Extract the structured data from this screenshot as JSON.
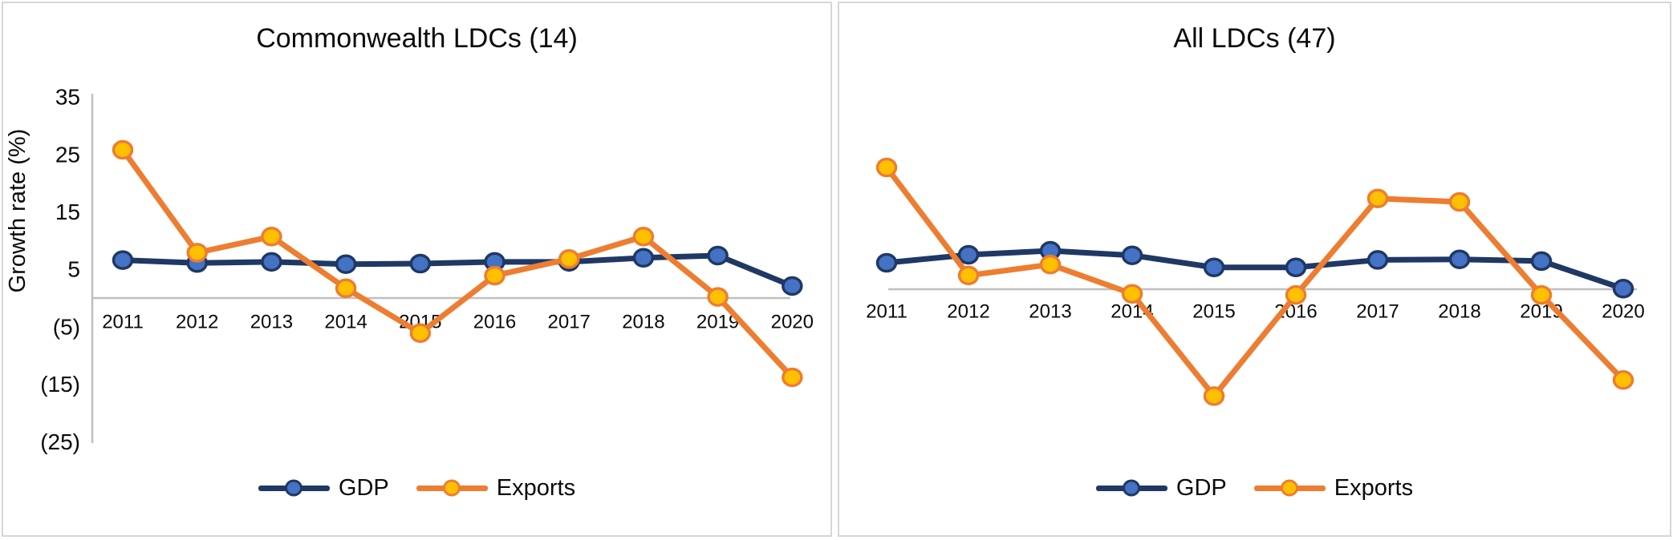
{
  "colors": {
    "gdp_line": "#1F3864",
    "gdp_marker_fill": "#4472C4",
    "exports_line": "#ED7D31",
    "exports_marker_fill": "#FFC000",
    "axis_line": "#BFBFBF",
    "text": "#0A0A0A",
    "panel_border": "#D6D6D6",
    "background": "#FFFFFF"
  },
  "chart_data": [
    {
      "type": "line",
      "title": "Commonwealth LDCs (14)",
      "ylabel": "Growth rate (%)",
      "xlabel": "",
      "ylim": [
        -25,
        35
      ],
      "grid": "zero-axis-line-only",
      "legend_position": "bottom",
      "marker": "circle",
      "categories": [
        "2011",
        "2012",
        "2013",
        "2014",
        "2015",
        "2016",
        "2017",
        "2018",
        "2019",
        "2020"
      ],
      "y_ticks": [
        {
          "label": "35",
          "value": 35
        },
        {
          "label": "25",
          "value": 25
        },
        {
          "label": "15",
          "value": 15
        },
        {
          "label": "5",
          "value": 5
        },
        {
          "label": "(5)",
          "value": -5
        },
        {
          "label": "(15)",
          "value": -15
        },
        {
          "label": "(25)",
          "value": -25
        }
      ],
      "series": [
        {
          "name": "GDP",
          "values": [
            6.6,
            6.1,
            6.3,
            5.9,
            6.0,
            6.3,
            6.3,
            7.0,
            7.4,
            2.1
          ]
        },
        {
          "name": "Exports",
          "values": [
            25.8,
            7.9,
            10.7,
            1.7,
            -6.1,
            3.9,
            6.8,
            10.7,
            0.2,
            -13.8
          ]
        }
      ]
    },
    {
      "type": "line",
      "title": "All LDCs (47)",
      "ylabel": "",
      "xlabel": "",
      "ylim": [
        -25,
        35
      ],
      "grid": "zero-axis-line-only",
      "legend_position": "bottom",
      "marker": "circle",
      "categories": [
        "2011",
        "2012",
        "2013",
        "2014",
        "2015",
        "2016",
        "2017",
        "2018",
        "2019",
        "2020"
      ],
      "y_ticks": [],
      "series": [
        {
          "name": "GDP",
          "values": [
            4.6,
            6.0,
            6.7,
            5.9,
            3.8,
            3.8,
            5.1,
            5.2,
            4.9,
            0.1
          ]
        },
        {
          "name": "Exports",
          "values": [
            21.2,
            2.4,
            4.3,
            -0.8,
            -18.6,
            -1.0,
            15.8,
            15.2,
            -1.0,
            -15.8
          ]
        }
      ]
    }
  ]
}
